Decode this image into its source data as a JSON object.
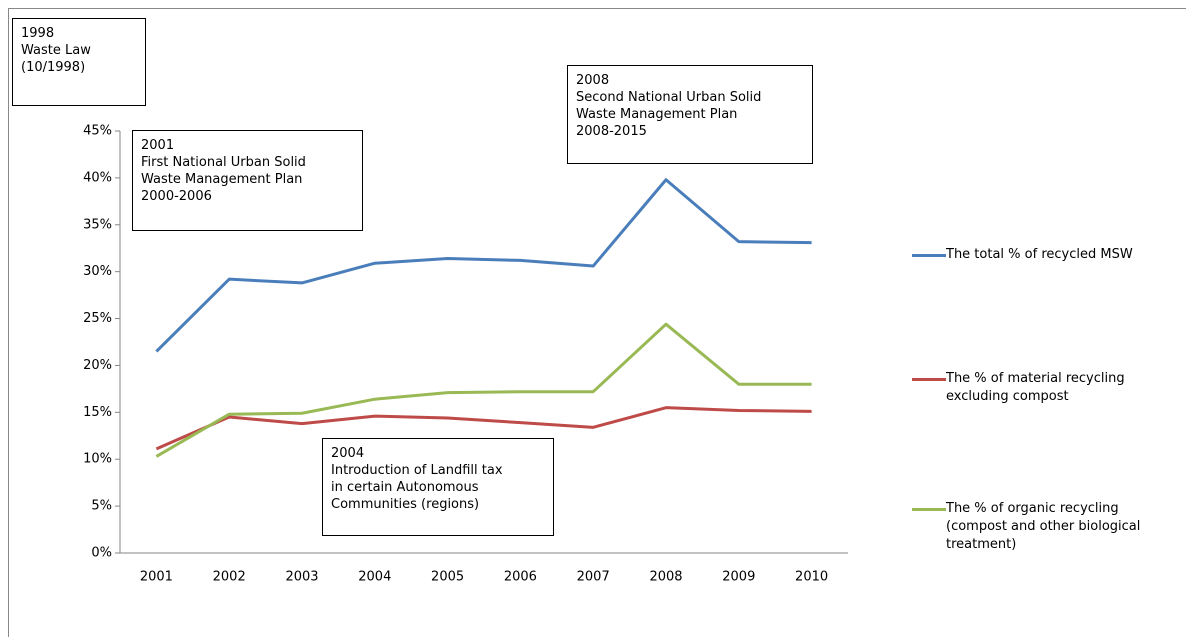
{
  "chart_data": {
    "type": "line",
    "categories": [
      "2001",
      "2002",
      "2003",
      "2004",
      "2005",
      "2006",
      "2007",
      "2008",
      "2009",
      "2010"
    ],
    "series": [
      {
        "name": "The total % of recycled MSW",
        "color": "#4a7ebb",
        "values": [
          21.5,
          29.2,
          28.8,
          30.9,
          31.4,
          31.2,
          30.6,
          39.8,
          33.2,
          33.1
        ]
      },
      {
        "name": "The % of material recycling excluding compost",
        "color": "#be4b48",
        "values": [
          11.1,
          14.5,
          13.8,
          14.6,
          14.4,
          13.9,
          13.4,
          15.5,
          15.2,
          15.1
        ]
      },
      {
        "name": "The % of organic recycling (compost and other biological treatment)",
        "color": "#98b954",
        "values": [
          10.3,
          14.8,
          14.9,
          16.4,
          17.1,
          17.2,
          17.2,
          24.4,
          18.0,
          18.0
        ]
      }
    ],
    "ylim": [
      0,
      45
    ],
    "yticks": [
      {
        "value": 0,
        "label": "0%"
      },
      {
        "value": 5,
        "label": "5%"
      },
      {
        "value": 10,
        "label": "10%"
      },
      {
        "value": 15,
        "label": "15%"
      },
      {
        "value": 20,
        "label": "20%"
      },
      {
        "value": 25,
        "label": "25%"
      },
      {
        "value": 30,
        "label": "30%"
      },
      {
        "value": 35,
        "label": "35%"
      },
      {
        "value": 40,
        "label": "40%"
      },
      {
        "value": 45,
        "label": "45%"
      }
    ],
    "legend": "right",
    "annotations": [
      {
        "lines": [
          "1998",
          "Waste Law",
          "(10/1998)"
        ]
      },
      {
        "lines": [
          "2001",
          "First National Urban Solid",
          "Waste Management Plan",
          "2000-2006"
        ]
      },
      {
        "lines": [
          "2008",
          "Second National Urban Solid",
          "Waste Management Plan",
          "2008-2015"
        ]
      },
      {
        "lines": [
          "2004",
          "Introduction of Landfill tax",
          "in certain Autonomous",
          "Communities (regions)"
        ]
      }
    ]
  }
}
